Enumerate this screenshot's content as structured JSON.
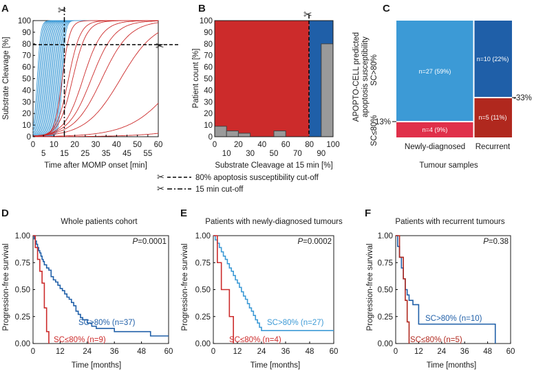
{
  "colors": {
    "blue_light": "#3c9ad6",
    "blue_dark": "#1f5fa8",
    "red": "#cc2b2b",
    "red_dark": "#b0281e",
    "pink": "#e0304a",
    "gray": "#9a9a9a"
  },
  "panels": {
    "A": {
      "label": "A",
      "ylabel": "Substrate Cleavage [%]",
      "xlabel": "Time after MOMP onset [min]",
      "yticks": [
        "0",
        "10",
        "20",
        "30",
        "40",
        "50",
        "60",
        "70",
        "80",
        "90",
        "100"
      ],
      "xticks_row1": [
        "0",
        "10",
        "20",
        "30",
        "40",
        "50",
        "60"
      ],
      "xticks_row2": [
        "5",
        "15",
        "25",
        "35",
        "45",
        "55"
      ]
    },
    "B": {
      "label": "B",
      "ylabel": "Patient count [%]",
      "xlabel": "Substrate Cleavage at 15 min [%]",
      "yticks": [
        "0",
        "10",
        "20",
        "30",
        "40",
        "50",
        "60",
        "70",
        "80",
        "90",
        "100"
      ],
      "xticks_row1": [
        "0",
        "20",
        "40",
        "60",
        "80",
        "100"
      ],
      "xticks_row2": [
        "10",
        "30",
        "50",
        "70",
        "90"
      ]
    },
    "C": {
      "label": "C",
      "ylabel_line1": "APOPTO-CELL predicted",
      "ylabel_line2": "apoptosis susceptibility",
      "group_high": "SC>80%",
      "group_low": "SC≤80%",
      "xlabel_left": "Newly-diagnosed",
      "xlabel_right": "Recurrent",
      "xtitle": "Tumour samples",
      "pct_left": "13%",
      "pct_right": "-33%",
      "cell_nd_high": "n=27 (59%)",
      "cell_rec_high": "n=10 (22%)",
      "cell_nd_low": "n=4 (9%)",
      "cell_rec_low": "n=5 (11%)"
    },
    "legend": {
      "line1": "80% apoptosis susceptibility cut-off",
      "line2": "15 min cut-off"
    },
    "D": {
      "label": "D",
      "title": "Whole patients cohort",
      "pvalue": "0.0001",
      "high_label": "SC>80% (n=37)",
      "low_label": "SC≤80% (n=9)"
    },
    "E": {
      "label": "E",
      "title": "Patients with newly-diagnosed tumours",
      "pvalue": "0.0002",
      "high_label": "SC>80% (n=27)",
      "low_label": "SC≤80% (n=4)"
    },
    "F": {
      "label": "F",
      "title": "Patients with recurrent tumours",
      "pvalue": "0.38",
      "high_label": "SC>80% (n=10)",
      "low_label": "SC≤80% (n=5)"
    },
    "km_common": {
      "ylabel": "Progression-free survival",
      "xlabel": "Time [months]",
      "p_prefix": "P",
      "yticks": [
        "0.00",
        "0.25",
        "0.50",
        "0.75",
        "1.00"
      ]
    }
  },
  "chart_data": [
    {
      "type": "line",
      "title": "",
      "xlabel": "Time after MOMP onset [min]",
      "ylabel": "Substrate Cleavage [%]",
      "xlim": [
        0,
        60
      ],
      "ylim": [
        0,
        100
      ],
      "cutoff_y": 80,
      "cutoff_x": 15,
      "blue_curve_midpoints": [
        2,
        2.5,
        3,
        3.5,
        4,
        4.5,
        5,
        5.5,
        6,
        6.5,
        7,
        7.5,
        8,
        8.5,
        9,
        9.5,
        10,
        10.5,
        11,
        11.5,
        12,
        12.5,
        13,
        13.5,
        14
      ],
      "red_curves": [
        {
          "mid": 14,
          "slope": 0.55
        },
        {
          "mid": 17,
          "slope": 0.35
        },
        {
          "mid": 19,
          "slope": 0.3
        },
        {
          "mid": 24,
          "slope": 0.22
        },
        {
          "mid": 28,
          "slope": 0.18
        },
        {
          "mid": 33,
          "slope": 0.15
        },
        {
          "mid": 42,
          "slope": 0.12
        },
        {
          "mid": 70,
          "slope": 0.09
        },
        {
          "mid": 110,
          "slope": 0.07
        }
      ]
    },
    {
      "type": "bar",
      "title": "",
      "xlabel": "Substrate Cleavage at 15 min [%]",
      "ylabel": "Patient count [%]",
      "bin_edges": [
        0,
        10,
        20,
        30,
        40,
        50,
        60,
        70,
        80,
        90,
        100
      ],
      "values": [
        9,
        5,
        3,
        0,
        0,
        5,
        0,
        0,
        0,
        80
      ],
      "background_split": 80,
      "xlim": [
        0,
        100
      ],
      "ylim": [
        0,
        100
      ]
    },
    {
      "type": "heatmap",
      "title": "",
      "categories": [
        "Newly-diagnosed",
        "Recurrent"
      ],
      "series": [
        {
          "name": "SC>80%",
          "values": [
            27,
            10
          ],
          "percent": [
            59,
            22
          ]
        },
        {
          "name": "SC≤80%",
          "values": [
            4,
            5
          ],
          "percent": [
            9,
            11
          ]
        }
      ]
    },
    {
      "type": "line",
      "title": "Whole patients cohort",
      "xlabel": "Time [months]",
      "ylabel": "Progression-free survival",
      "xlim": [
        0,
        60
      ],
      "ylim": [
        0,
        1
      ],
      "xticks": [
        0,
        12,
        24,
        36,
        48,
        60
      ],
      "series": [
        {
          "name": "SC>80% (n=37)",
          "x": [
            0,
            0.5,
            1,
            1.5,
            2,
            2.5,
            3,
            3.5,
            4,
            4.5,
            5,
            6,
            7,
            8,
            9,
            10,
            11,
            12,
            13,
            14,
            15,
            16,
            17,
            18,
            19,
            20,
            21,
            22,
            24,
            26,
            28,
            30,
            33,
            36,
            50,
            52,
            60
          ],
          "y": [
            1.0,
            0.97,
            0.95,
            0.92,
            0.89,
            0.86,
            0.84,
            0.81,
            0.78,
            0.76,
            0.73,
            0.7,
            0.68,
            0.62,
            0.59,
            0.57,
            0.54,
            0.51,
            0.49,
            0.46,
            0.43,
            0.41,
            0.38,
            0.35,
            0.3,
            0.27,
            0.24,
            0.22,
            0.19,
            0.16,
            0.14,
            0.14,
            0.14,
            0.11,
            0.11,
            0.07,
            0.07
          ]
        },
        {
          "name": "SC≤80% (n=9)",
          "x": [
            0,
            1,
            2,
            3,
            4,
            5,
            6,
            7
          ],
          "y": [
            1.0,
            0.89,
            0.78,
            0.67,
            0.56,
            0.33,
            0.11,
            0.0
          ]
        }
      ]
    },
    {
      "type": "line",
      "title": "Patients with newly-diagnosed tumours",
      "xlabel": "Time [months]",
      "ylabel": "Progression-free survival",
      "xlim": [
        0,
        60
      ],
      "ylim": [
        0,
        1
      ],
      "xticks": [
        0,
        12,
        24,
        36,
        48,
        60
      ],
      "series": [
        {
          "name": "SC>80% (n=27)",
          "x": [
            0,
            1,
            2,
            3,
            4,
            5,
            6,
            7,
            8,
            9,
            10,
            11,
            12,
            13,
            14,
            15,
            16,
            17,
            18,
            19,
            20,
            21,
            22,
            23,
            24,
            60
          ],
          "y": [
            1.0,
            0.96,
            0.93,
            0.89,
            0.85,
            0.81,
            0.78,
            0.74,
            0.7,
            0.67,
            0.63,
            0.59,
            0.56,
            0.52,
            0.48,
            0.44,
            0.41,
            0.37,
            0.33,
            0.3,
            0.26,
            0.22,
            0.19,
            0.15,
            0.12,
            0.12
          ]
        },
        {
          "name": "SC≤80% (n=4)",
          "x": [
            0,
            2,
            4,
            6,
            8,
            10
          ],
          "y": [
            1.0,
            0.75,
            0.5,
            0.5,
            0.25,
            0.0
          ]
        }
      ]
    },
    {
      "type": "line",
      "title": "Patients with recurrent tumours",
      "xlabel": "Time [months]",
      "ylabel": "Progression-free survival",
      "xlim": [
        0,
        60
      ],
      "ylim": [
        0,
        1
      ],
      "xticks": [
        0,
        12,
        24,
        36,
        48,
        60
      ],
      "series": [
        {
          "name": "SC>80% (n=10)",
          "x": [
            0,
            1,
            2,
            3,
            4,
            5,
            6,
            7,
            9,
            12,
            24,
            50,
            52
          ],
          "y": [
            1.0,
            0.9,
            0.8,
            0.7,
            0.6,
            0.5,
            0.45,
            0.4,
            0.36,
            0.18,
            0.18,
            0.18,
            0.0
          ]
        },
        {
          "name": "SC≤80% (n=5)",
          "x": [
            0,
            2,
            4,
            5,
            6,
            7
          ],
          "y": [
            1.0,
            0.8,
            0.6,
            0.4,
            0.2,
            0.0
          ]
        }
      ]
    }
  ]
}
